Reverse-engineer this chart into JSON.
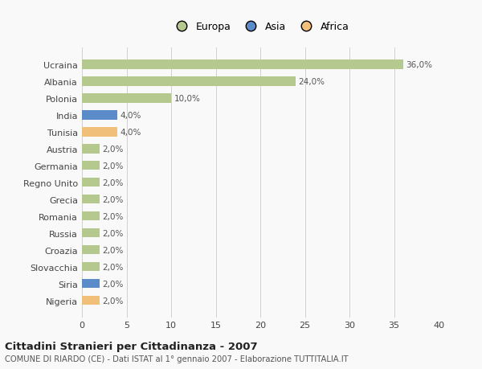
{
  "categories": [
    "Nigeria",
    "Siria",
    "Slovacchia",
    "Croazia",
    "Russia",
    "Romania",
    "Grecia",
    "Regno Unito",
    "Germania",
    "Austria",
    "Tunisia",
    "India",
    "Polonia",
    "Albania",
    "Ucraina"
  ],
  "values": [
    2.0,
    2.0,
    2.0,
    2.0,
    2.0,
    2.0,
    2.0,
    2.0,
    2.0,
    2.0,
    4.0,
    4.0,
    10.0,
    24.0,
    36.0
  ],
  "colors": [
    "#f0c07a",
    "#5b8bc9",
    "#b5c98e",
    "#b5c98e",
    "#b5c98e",
    "#b5c98e",
    "#b5c98e",
    "#b5c98e",
    "#b5c98e",
    "#b5c98e",
    "#f0c07a",
    "#5b8bc9",
    "#b5c98e",
    "#b5c98e",
    "#b5c98e"
  ],
  "labels": [
    "2,0%",
    "2,0%",
    "2,0%",
    "2,0%",
    "2,0%",
    "2,0%",
    "2,0%",
    "2,0%",
    "2,0%",
    "2,0%",
    "4,0%",
    "4,0%",
    "10,0%",
    "24,0%",
    "36,0%"
  ],
  "continent_colors": {
    "Europa": "#b5c98e",
    "Asia": "#5b8bc9",
    "Africa": "#f0c07a"
  },
  "title": "Cittadini Stranieri per Cittadinanza - 2007",
  "subtitle": "COMUNE DI RIARDO (CE) - Dati ISTAT al 1° gennaio 2007 - Elaborazione TUTTITALIA.IT",
  "xlim": [
    0,
    40
  ],
  "xticks": [
    0,
    5,
    10,
    15,
    20,
    25,
    30,
    35,
    40
  ],
  "background_color": "#f9f9f9",
  "grid_color": "#d0d0d0",
  "bar_height": 0.55
}
